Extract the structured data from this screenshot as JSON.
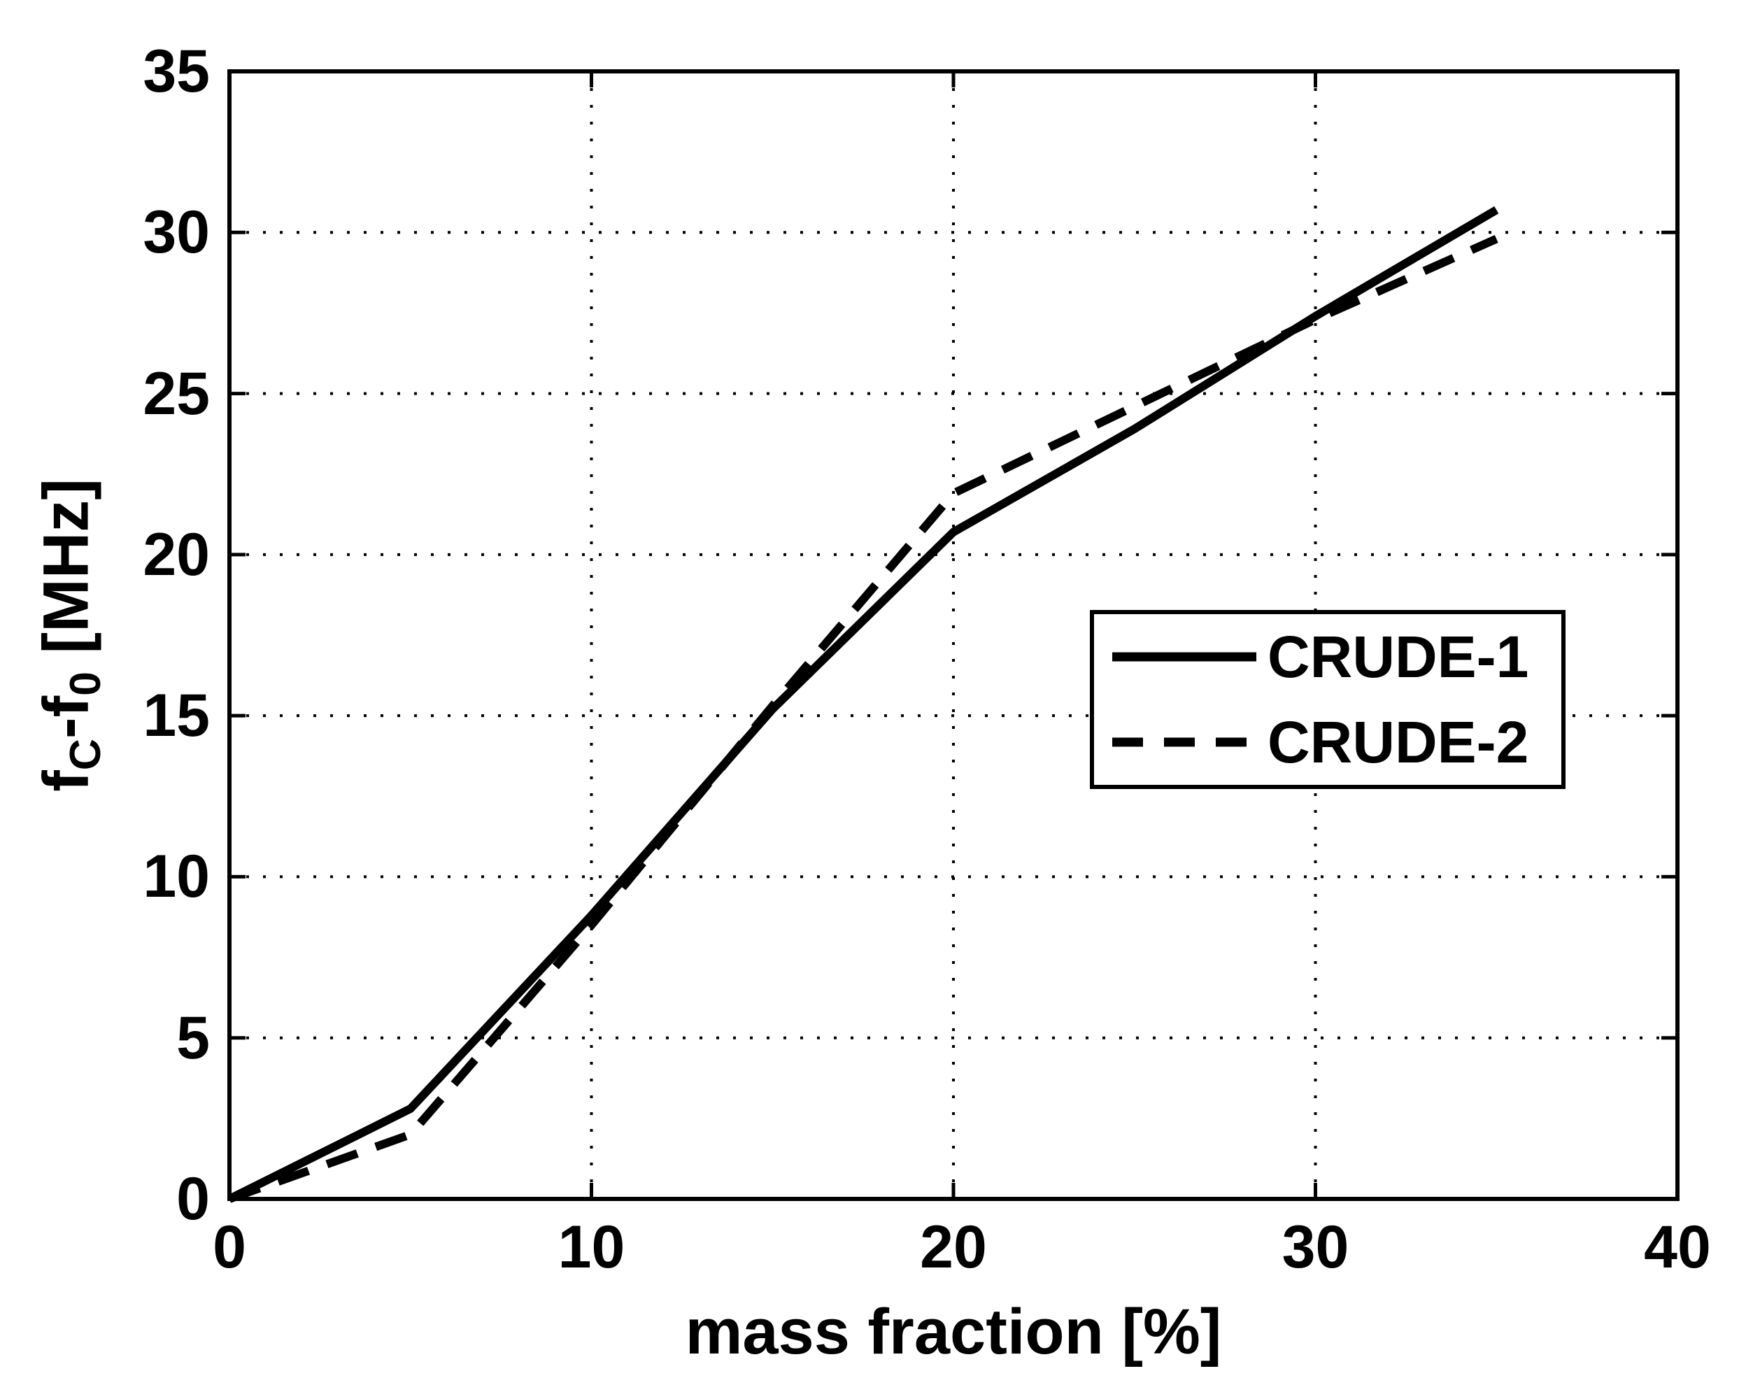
{
  "figure": {
    "background": "#ffffff",
    "plot_background": "#ffffff",
    "axis_color": "#000000",
    "grid_style": "dotted",
    "box": true
  },
  "chart_data": {
    "type": "line",
    "title": "",
    "xlabel": "mass fraction [%]",
    "ylabel": "f_C-f_0 [MHz]",
    "ylabel_parts": [
      {
        "text": "f",
        "sub": false
      },
      {
        "text": "C",
        "sub": true
      },
      {
        "text": "-f",
        "sub": false
      },
      {
        "text": "0",
        "sub": true
      },
      {
        "text": " [MHz]",
        "sub": false
      }
    ],
    "xlim": [
      0,
      40
    ],
    "ylim": [
      0,
      35
    ],
    "xticks": [
      0,
      10,
      20,
      30,
      40
    ],
    "yticks": [
      0,
      5,
      10,
      15,
      20,
      25,
      30,
      35
    ],
    "grid": "on",
    "legend_position": "middle-right",
    "x": [
      0,
      5,
      10,
      15,
      20,
      25,
      30,
      35
    ],
    "series": [
      {
        "name": "CRUDE-1",
        "line_style": "solid",
        "color": "#000000",
        "values": [
          0,
          2.8,
          8.8,
          15.2,
          20.7,
          23.9,
          27.4,
          30.7
        ]
      },
      {
        "name": "CRUDE-2",
        "line_style": "dashed",
        "color": "#000000",
        "values": [
          0,
          2.0,
          8.5,
          15.3,
          21.9,
          24.6,
          27.3,
          29.8
        ]
      }
    ]
  }
}
